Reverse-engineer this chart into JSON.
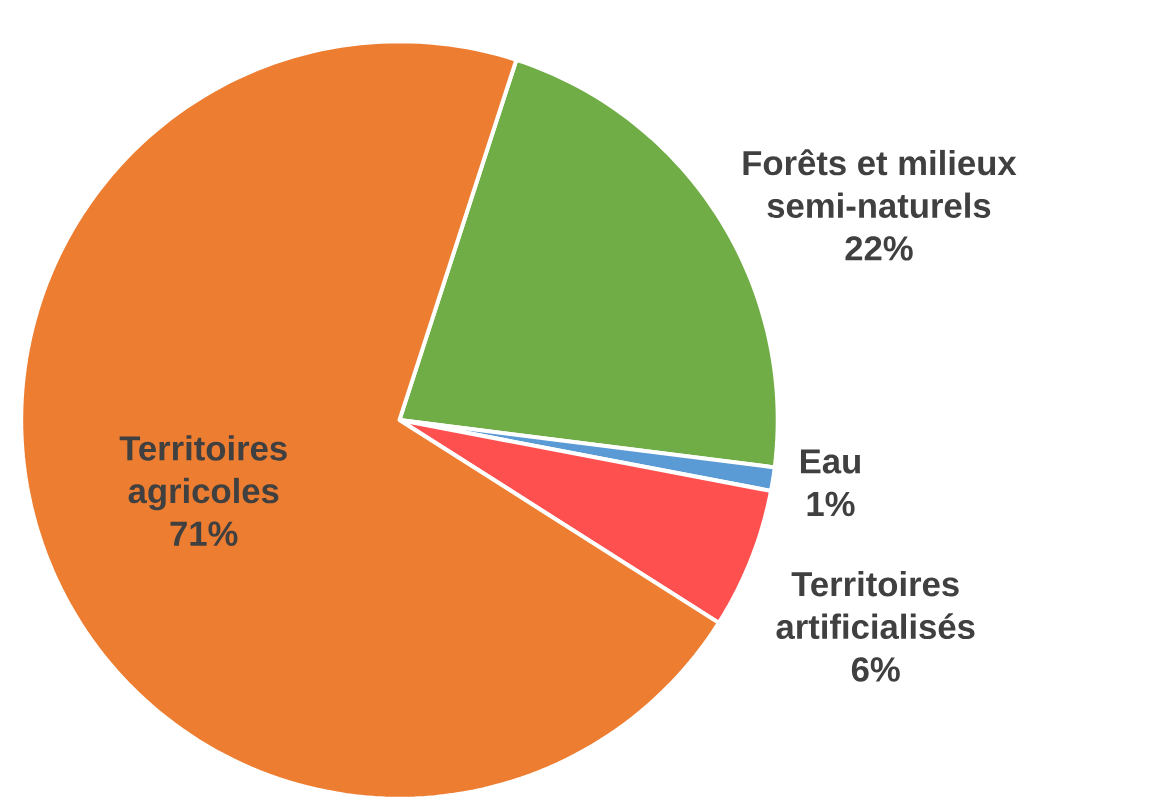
{
  "chart_data": {
    "type": "pie",
    "categories": [
      "Forêts et milieux semi-naturels",
      "Eau",
      "Territoires artificialisés",
      "Territoires agricoles"
    ],
    "values": [
      22,
      1,
      6,
      71
    ],
    "colors": [
      "#70ad47",
      "#5b9bd5",
      "#ff5050",
      "#ed7d31"
    ],
    "value_labels": [
      "22%",
      "1%",
      "6%",
      "71%"
    ]
  }
}
